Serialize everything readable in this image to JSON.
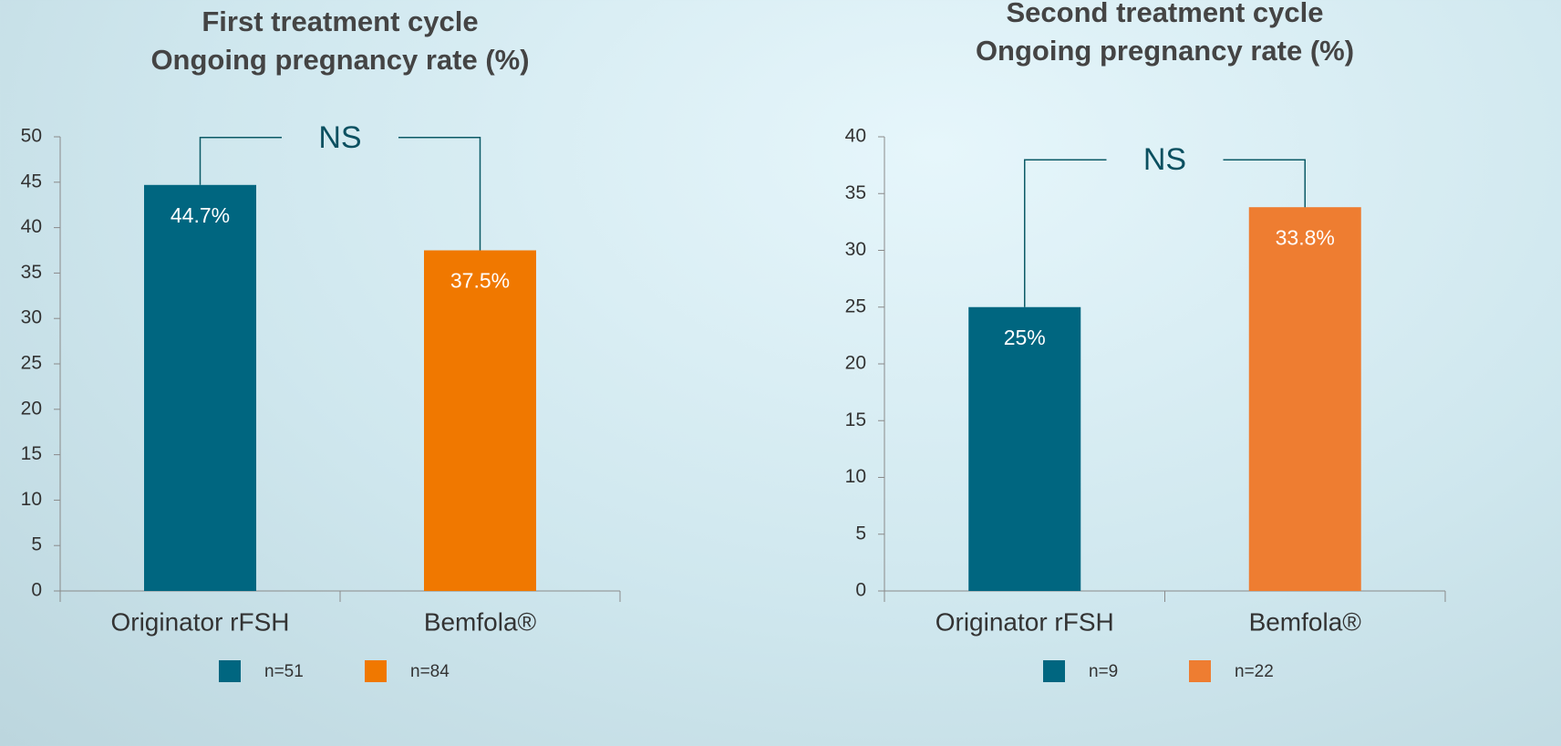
{
  "chart_data": [
    {
      "type": "bar",
      "title": [
        "First treatment cycle",
        "Ongoing pregnancy rate (%)"
      ],
      "categories": [
        "Originator rFSH",
        "Bemfola®"
      ],
      "values": [
        44.7,
        37.5
      ],
      "value_labels": [
        "44.7%",
        "37.5%"
      ],
      "colors": [
        "#006680",
        "#f07800"
      ],
      "legend": [
        "n=51",
        "n=84"
      ],
      "annotation": "NS",
      "ylim": [
        0,
        50
      ],
      "yticks": [
        0,
        5,
        10,
        15,
        20,
        25,
        30,
        35,
        40,
        45,
        50
      ]
    },
    {
      "type": "bar",
      "title": [
        "Second treatment cycle",
        "Ongoing pregnancy rate (%)"
      ],
      "categories": [
        "Originator rFSH",
        "Bemfola®"
      ],
      "values": [
        25,
        33.8
      ],
      "value_labels": [
        "25%",
        "33.8%"
      ],
      "colors": [
        "#006680",
        "#ee7d31"
      ],
      "legend": [
        "n=9",
        "n=22"
      ],
      "annotation": "NS",
      "ylim": [
        0,
        40
      ],
      "yticks": [
        0,
        5,
        10,
        15,
        20,
        25,
        30,
        35,
        40
      ]
    }
  ]
}
